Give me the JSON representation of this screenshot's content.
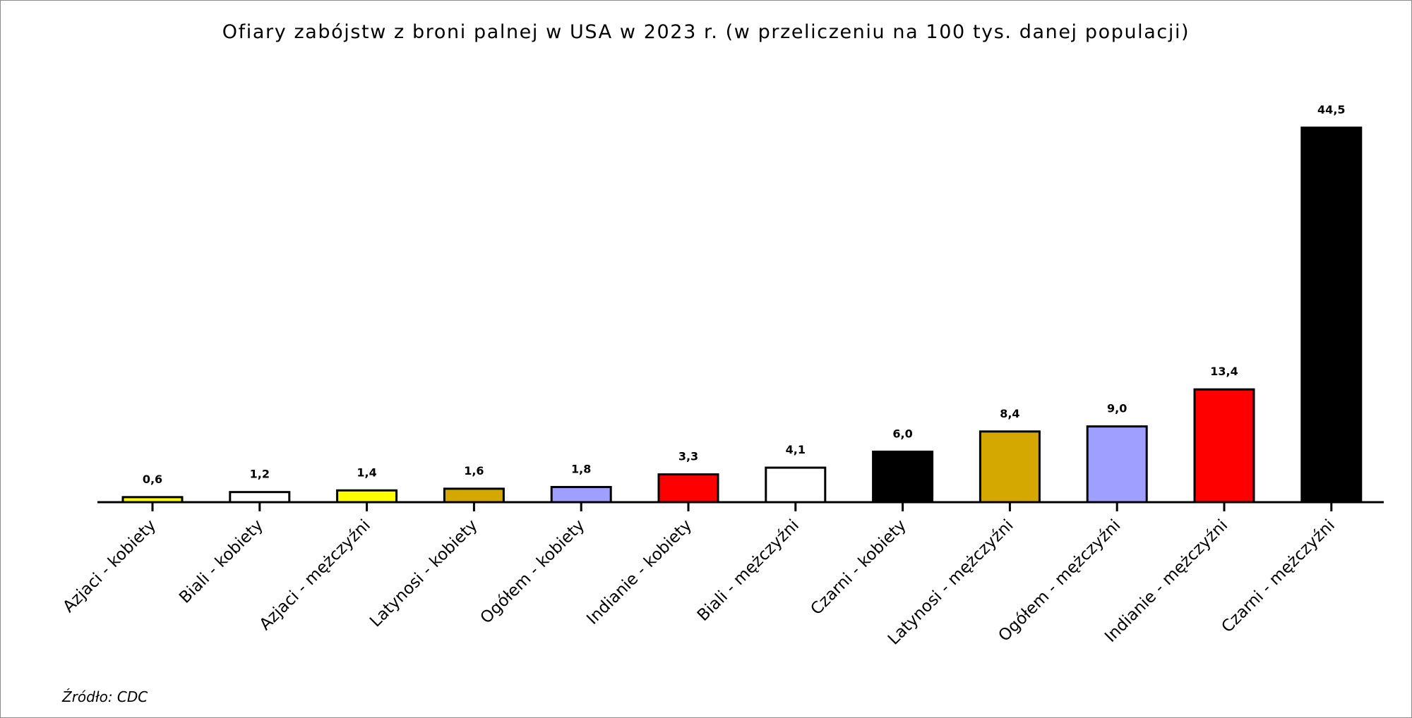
{
  "chart_data": {
    "type": "bar",
    "title": "Ofiary zabójstw z broni palnej w USA  w 2023 r. (w przeliczeniu na 100 tys. danej populacji)",
    "source": "Źródło: CDC",
    "xlabel": "",
    "ylabel": "",
    "ylim": [
      0,
      44.5
    ],
    "grid": false,
    "categories": [
      "Azjaci - kobiety",
      "Biali - kobiety",
      "Azjaci - mężczyźni",
      "Latynosi - kobiety",
      "Ogółem - kobiety",
      "Indianie - kobiety",
      "Biali - mężczyźni",
      "Czarni - kobiety",
      "Latynosi - mężczyźni",
      "Ogółem - mężczyźni",
      "Indianie - mężczyźni",
      "Czarni - mężczyźni"
    ],
    "values": [
      0.6,
      1.2,
      1.4,
      1.6,
      1.8,
      3.3,
      4.1,
      6.0,
      8.4,
      9.0,
      13.4,
      44.5
    ],
    "value_labels": [
      "0,6",
      "1,2",
      "1,4",
      "1,6",
      "1,8",
      "3,3",
      "4,1",
      "6,0",
      "8,4",
      "9,0",
      "13,4",
      "44,5"
    ],
    "colors": [
      "#ffff00",
      "#ffffff",
      "#ffff00",
      "#d4a800",
      "#9f9fff",
      "#ff0000",
      "#ffffff",
      "#000000",
      "#d4a800",
      "#9f9fff",
      "#ff0000",
      "#000000"
    ]
  }
}
